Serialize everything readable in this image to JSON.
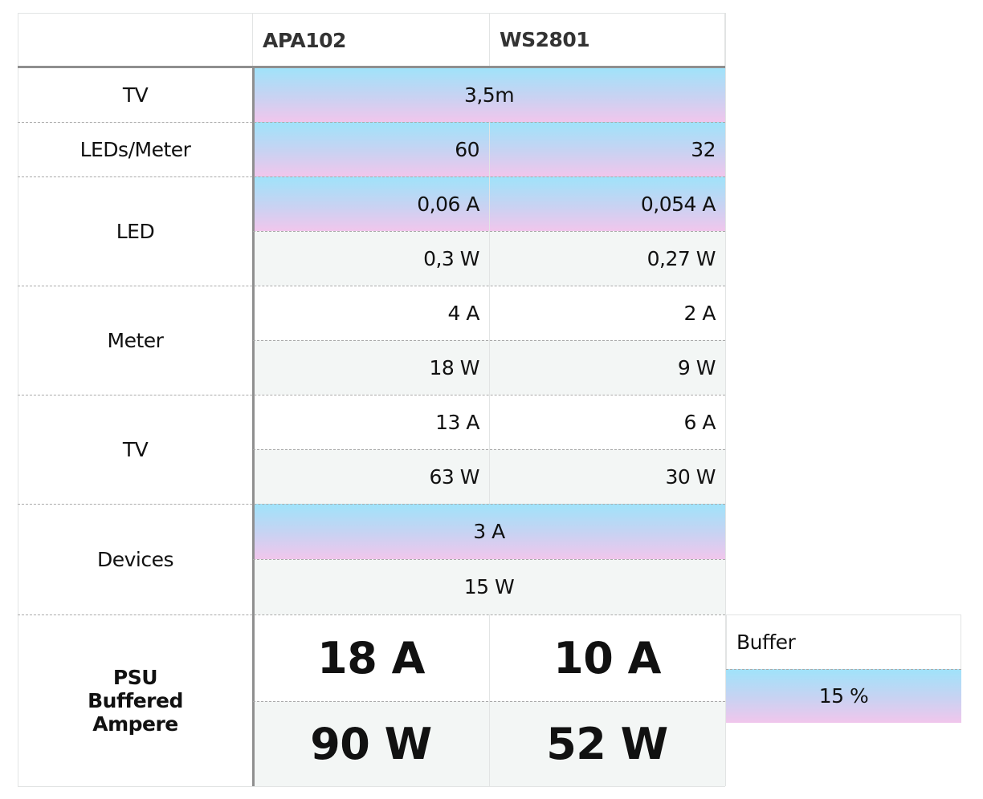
{
  "header": {
    "corner": "",
    "col1": "APA102",
    "col2": "WS2801"
  },
  "rows": {
    "tv_length": {
      "label": "TV",
      "value": "3,5m"
    },
    "leds_per_meter": {
      "label": "LEDs/Meter",
      "apa102": "60",
      "ws2801": "32"
    },
    "led": {
      "label": "LED",
      "apa102_a": "0,06 A",
      "ws2801_a": "0,054 A",
      "apa102_w": "0,3 W",
      "ws2801_w": "0,27 W"
    },
    "meter": {
      "label": "Meter",
      "apa102_a": "4 A",
      "ws2801_a": "2 A",
      "apa102_w": "18 W",
      "ws2801_w": "9 W"
    },
    "tv": {
      "label": "TV",
      "apa102_a": "13 A",
      "ws2801_a": "6 A",
      "apa102_w": "63 W",
      "ws2801_w": "30 W"
    },
    "devices": {
      "label": "Devices",
      "a": "3 A",
      "w": "15 W"
    },
    "psu": {
      "label": "PSU Buffered Ampere",
      "apa102_a": "18 A",
      "ws2801_a": "10 A",
      "apa102_w": "90 W",
      "ws2801_w": "52 W"
    }
  },
  "buffer": {
    "label": "Buffer",
    "value": "15 %"
  },
  "colors": {
    "gradient_top": "#9fe3fa",
    "gradient_bottom": "#f1c6ec",
    "band": "#f3f6f5",
    "divider": "#8f8f8f"
  }
}
